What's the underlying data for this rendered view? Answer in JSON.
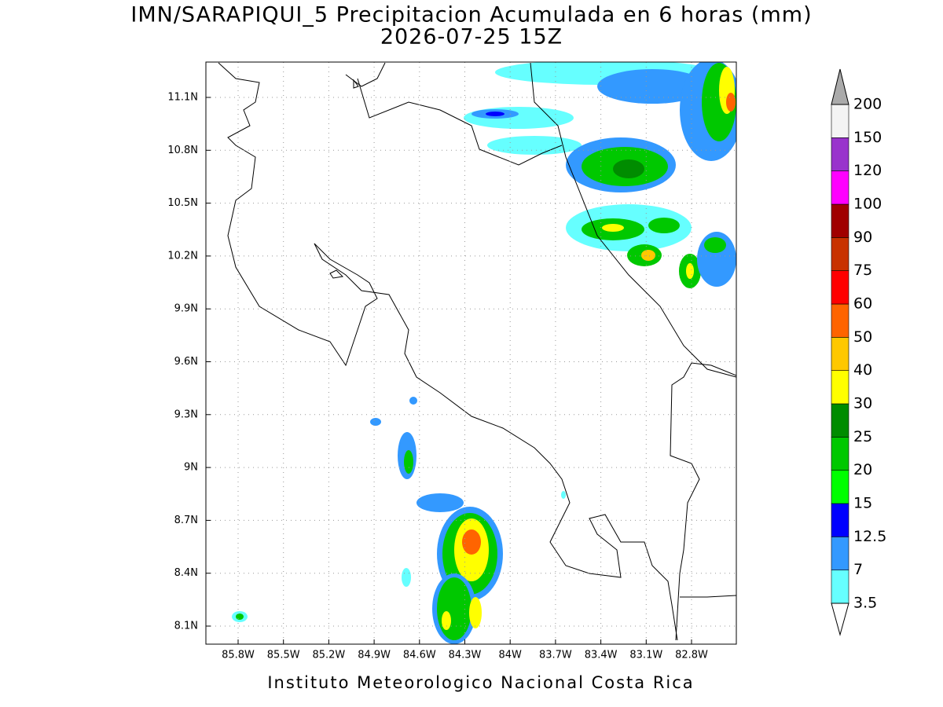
{
  "header": {
    "title": "IMN/SARAPIQUI_5 Precipitacion Acumulada en 6 horas (mm)",
    "subtitle": "2026-07-25 15Z"
  },
  "map": {
    "lon_ticks": [
      "85.8W",
      "85.5W",
      "85.2W",
      "84.9W",
      "84.6W",
      "84.3W",
      "84W",
      "83.7W",
      "83.4W",
      "83.1W",
      "82.8W"
    ],
    "lat_ticks": [
      "11.1N",
      "10.8N",
      "10.5N",
      "10.2N",
      "9.9N",
      "9.6N",
      "9.3N",
      "9N",
      "8.7N",
      "8.4N",
      "8.1N"
    ]
  },
  "colorbar": {
    "levels": [
      3.5,
      7,
      12.5,
      15,
      20,
      25,
      30,
      40,
      50,
      60,
      75,
      90,
      100,
      120,
      150,
      200
    ],
    "colors": [
      "#66ffff",
      "#3399ff",
      "#0000ff",
      "#00ff00",
      "#00c800",
      "#008c00",
      "#ffff00",
      "#ffc800",
      "#ff6400",
      "#ff0000",
      "#c83200",
      "#a00000",
      "#ff00ff",
      "#9933cc",
      "#f4f4f4"
    ],
    "under_color": "#ffffff",
    "over_color": "#aaaaaa"
  },
  "footer": "Instituto Meteorologico Nacional Costa Rica"
}
